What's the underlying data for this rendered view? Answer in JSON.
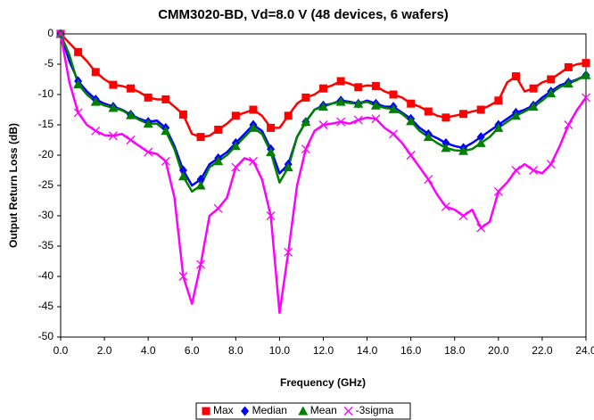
{
  "chart_data": {
    "type": "line",
    "title": "CMM3020-BD, Vd=8.0 V (48 devices, 6 wafers)",
    "x_label": "Frequency (GHz)",
    "y_label": "Output Return Loss (dB)",
    "x": [
      0,
      0.4,
      0.8,
      1.2,
      1.6,
      2.0,
      2.4,
      2.8,
      3.2,
      3.6,
      4.0,
      4.4,
      4.8,
      5.2,
      5.6,
      6.0,
      6.4,
      6.8,
      7.2,
      7.6,
      8.0,
      8.4,
      8.8,
      9.2,
      9.6,
      10.0,
      10.4,
      10.8,
      11.2,
      11.6,
      12.0,
      12.4,
      12.8,
      13.2,
      13.6,
      14.0,
      14.4,
      14.8,
      15.2,
      15.6,
      16.0,
      16.4,
      16.8,
      17.2,
      17.6,
      18.0,
      18.4,
      18.8,
      19.2,
      19.6,
      20.0,
      20.4,
      20.8,
      21.2,
      21.6,
      22.0,
      22.4,
      22.8,
      23.2,
      23.6,
      24.0
    ],
    "series": [
      {
        "name": "Max",
        "color": "#ff0000",
        "marker": "square",
        "values": [
          0,
          -1.5,
          -3,
          -4.5,
          -6.3,
          -7.5,
          -8.4,
          -8.6,
          -9,
          -9.6,
          -10.5,
          -10.8,
          -10.8,
          -12,
          -13.3,
          -16.5,
          -17,
          -16.8,
          -15.8,
          -14.8,
          -13.5,
          -13,
          -12.5,
          -13.5,
          -15.5,
          -15.5,
          -13.5,
          -11.5,
          -10.5,
          -10,
          -9,
          -8.5,
          -7.8,
          -8.2,
          -8.8,
          -8.5,
          -8.6,
          -9.5,
          -10,
          -10.5,
          -11.5,
          -12,
          -12.8,
          -13.5,
          -13.8,
          -13.5,
          -13.2,
          -12.8,
          -12.5,
          -11.8,
          -11,
          -8,
          -7,
          -9.5,
          -9,
          -8,
          -7.5,
          -6.5,
          -5.5,
          -5,
          -4.8
        ]
      },
      {
        "name": "Median",
        "color": "#0000ff",
        "marker": "diamond",
        "values": [
          0,
          -4.5,
          -7.8,
          -9.5,
          -10.8,
          -11.5,
          -12,
          -12.5,
          -13.3,
          -14,
          -14.5,
          -14.3,
          -15.5,
          -18.5,
          -22.5,
          -25,
          -24,
          -21.5,
          -20.5,
          -19.5,
          -18,
          -16.5,
          -15,
          -16,
          -19,
          -23,
          -21.5,
          -17,
          -14.5,
          -12.5,
          -11.8,
          -11.5,
          -11,
          -11.2,
          -11.5,
          -11,
          -11.5,
          -12,
          -12,
          -13,
          -14,
          -15.5,
          -16.5,
          -17.2,
          -18,
          -18.5,
          -18.8,
          -18,
          -17,
          -16,
          -15,
          -14,
          -13,
          -12.5,
          -11.8,
          -10.5,
          -9.5,
          -8.5,
          -8,
          -7.5,
          -6.8
        ]
      },
      {
        "name": "Mean",
        "color": "#008000",
        "marker": "triangle",
        "values": [
          0,
          -3.5,
          -8.3,
          -10,
          -11.2,
          -11.8,
          -12.2,
          -12.6,
          -13.4,
          -14.2,
          -14.8,
          -14.8,
          -16,
          -19,
          -23.5,
          -26,
          -25,
          -22,
          -21,
          -20,
          -18.5,
          -17,
          -15.5,
          -16.5,
          -19.5,
          -24.5,
          -22,
          -17,
          -14.5,
          -12.5,
          -12,
          -11.5,
          -11.2,
          -11.4,
          -11.5,
          -11.2,
          -11.8,
          -12.2,
          -12.4,
          -13.2,
          -14.4,
          -16,
          -17,
          -18,
          -18.8,
          -19.2,
          -19.3,
          -19,
          -18,
          -17,
          -15.5,
          -14.5,
          -13.5,
          -12.8,
          -12,
          -11,
          -9.8,
          -8.8,
          -8.2,
          -7.6,
          -6.8
        ]
      },
      {
        "name": "-3sigma",
        "color": "#ff00ff",
        "marker": "x",
        "values": [
          0,
          -8,
          -13,
          -15,
          -16,
          -16.7,
          -16.8,
          -16.5,
          -17.5,
          -18.5,
          -19.5,
          -19.8,
          -21,
          -27,
          -40,
          -44.5,
          -38,
          -30,
          -28.8,
          -27,
          -22,
          -20.5,
          -21,
          -24,
          -30,
          -46,
          -36,
          -25,
          -19,
          -16,
          -15,
          -14.8,
          -14.5,
          -14.8,
          -14.2,
          -13.8,
          -14,
          -15.5,
          -16.5,
          -18,
          -20,
          -22,
          -24,
          -26.5,
          -28.5,
          -29,
          -30,
          -29,
          -32,
          -31,
          -26,
          -24.5,
          -22.5,
          -21.5,
          -22.5,
          -23,
          -21.5,
          -18.5,
          -15,
          -12.5,
          -10.5
        ]
      }
    ],
    "xlim": [
      0,
      24
    ],
    "xticks": [
      {
        "value": 0,
        "label": "0.0"
      },
      {
        "value": 2,
        "label": "2.0"
      },
      {
        "value": 4,
        "label": "4.0"
      },
      {
        "value": 6,
        "label": "6.0"
      },
      {
        "value": 8,
        "label": "8.0"
      },
      {
        "value": 10,
        "label": "10.0"
      },
      {
        "value": 12,
        "label": "12.0"
      },
      {
        "value": 14,
        "label": "14.0"
      },
      {
        "value": 16,
        "label": "16.0"
      },
      {
        "value": 18,
        "label": "18.0"
      },
      {
        "value": 20,
        "label": "20.0"
      },
      {
        "value": 22,
        "label": "22.0"
      },
      {
        "value": 24,
        "label": "24.0"
      }
    ],
    "ylim": [
      -50,
      0
    ],
    "yticks": [
      0,
      -5,
      -10,
      -15,
      -20,
      -25,
      -30,
      -35,
      -40,
      -45,
      -50
    ],
    "legend": "bottom"
  }
}
